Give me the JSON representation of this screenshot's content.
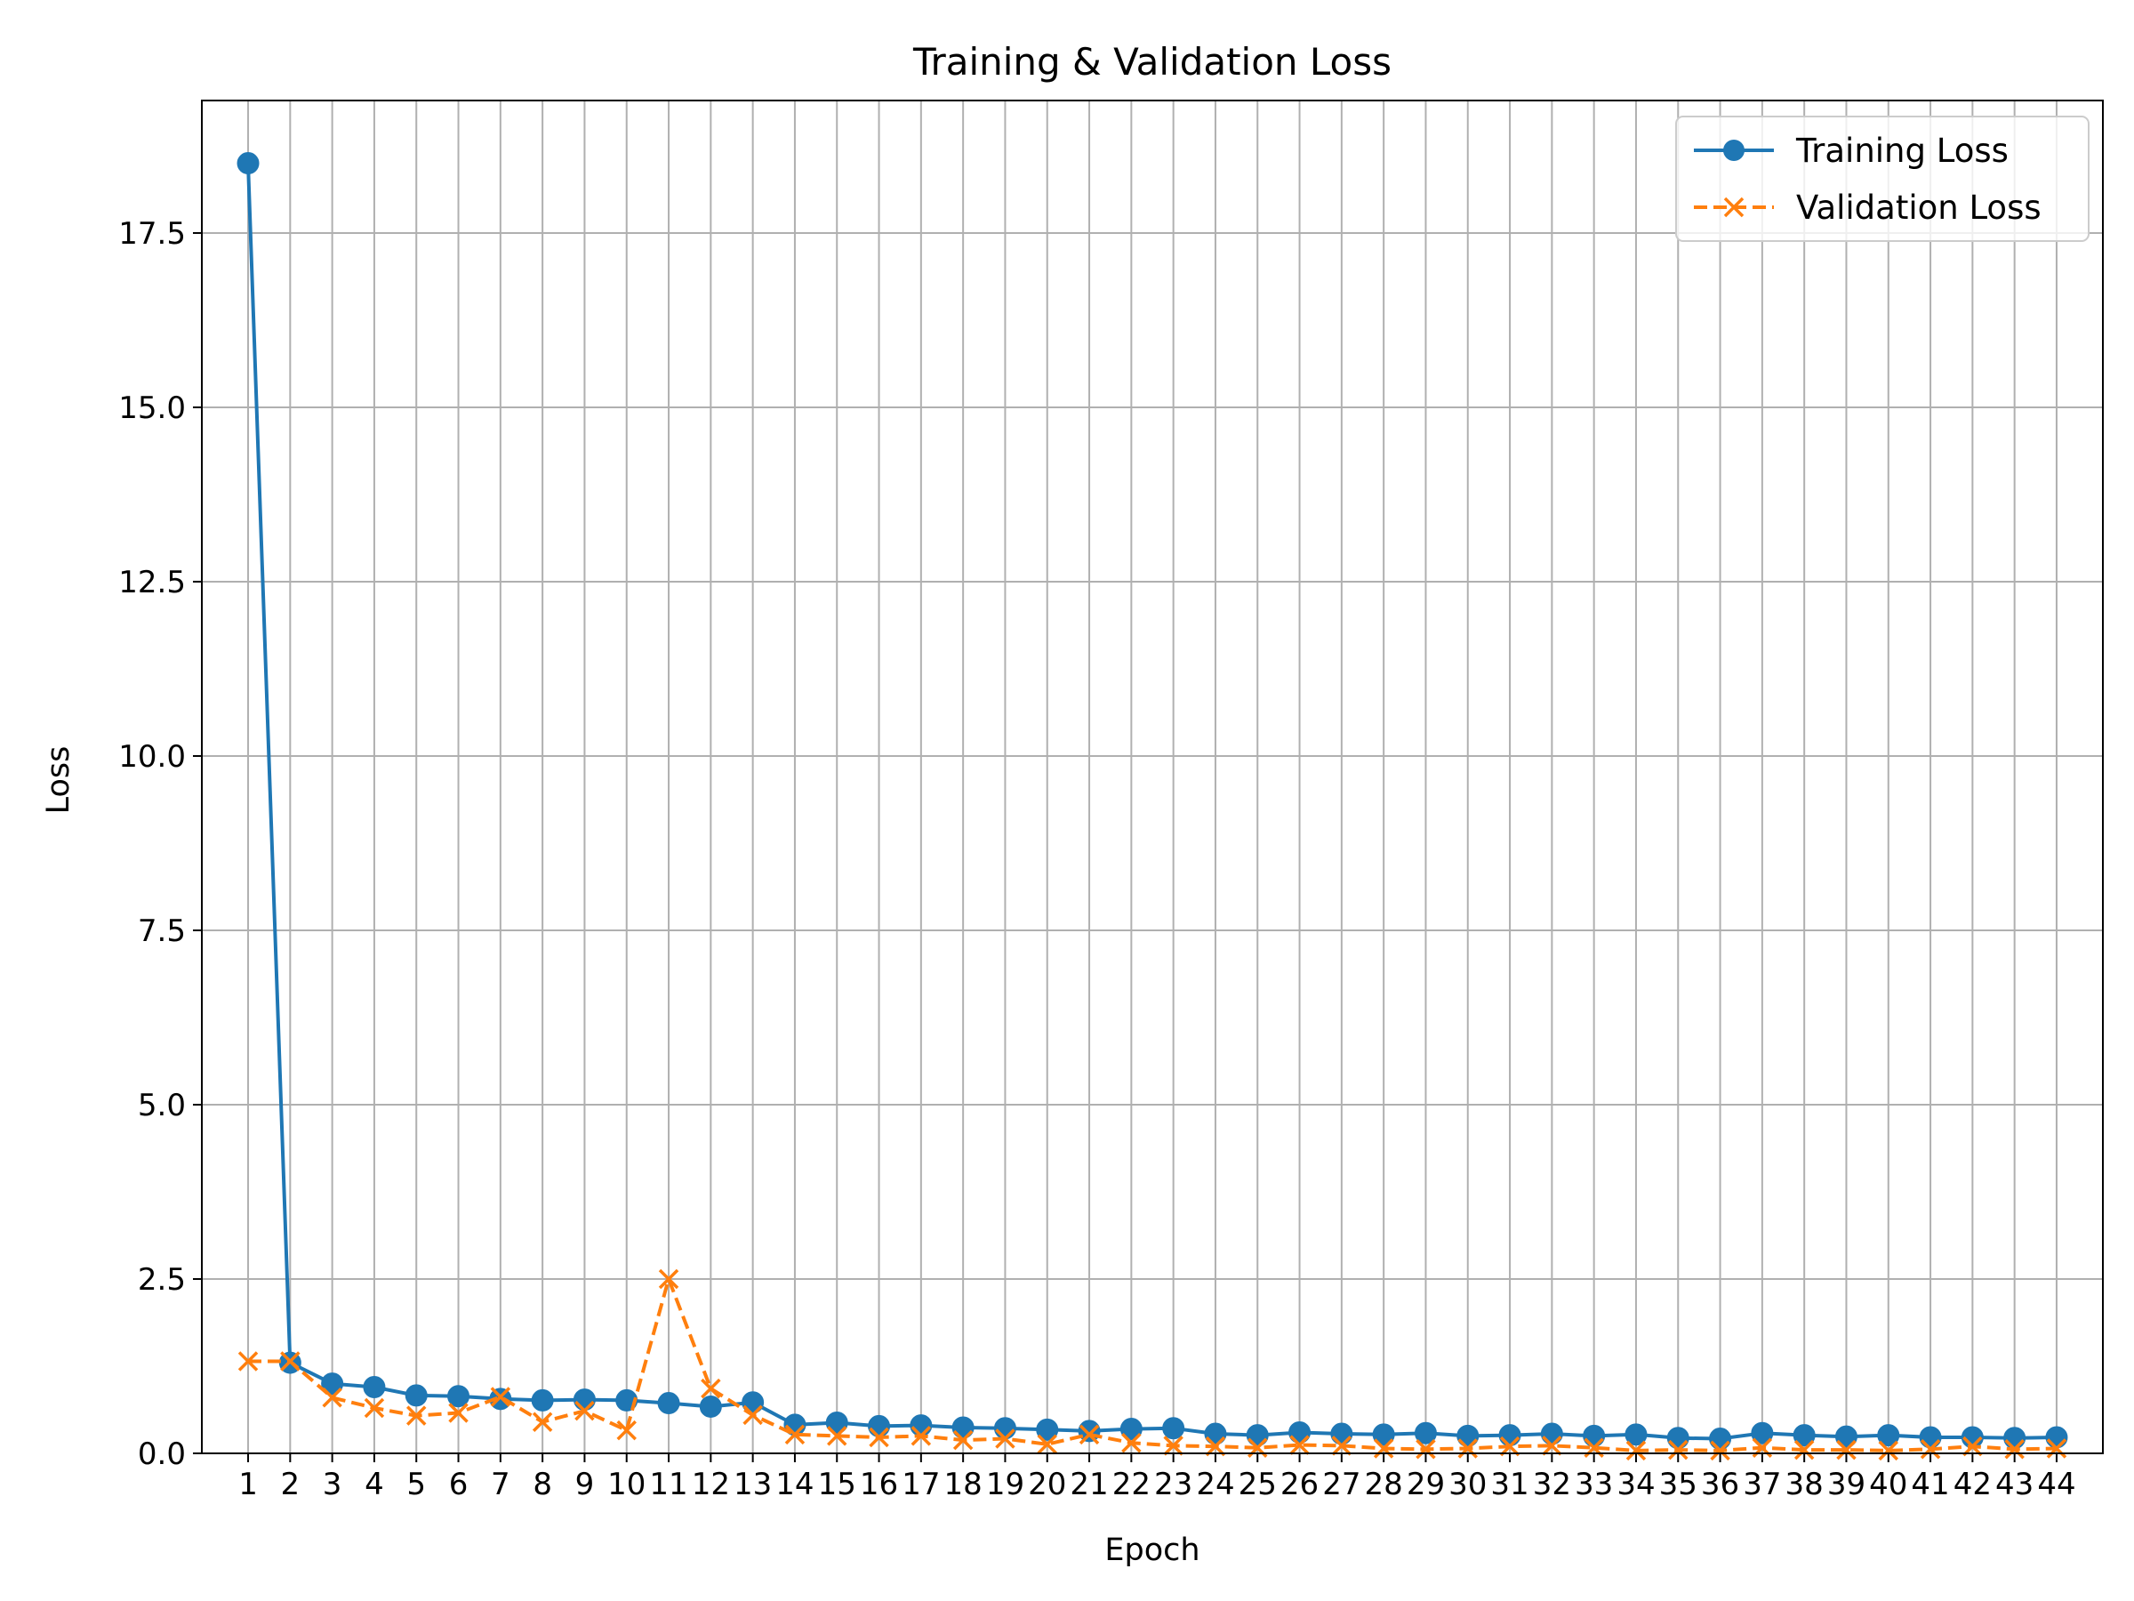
{
  "chart_data": {
    "type": "line",
    "title": "Training & Validation Loss",
    "xlabel": "Epoch",
    "ylabel": "Loss",
    "x": [
      1,
      2,
      3,
      4,
      5,
      6,
      7,
      8,
      9,
      10,
      11,
      12,
      13,
      14,
      15,
      16,
      17,
      18,
      19,
      20,
      21,
      22,
      23,
      24,
      25,
      26,
      27,
      28,
      29,
      30,
      31,
      32,
      33,
      34,
      35,
      36,
      37,
      38,
      39,
      40,
      41,
      42,
      43,
      44
    ],
    "xlim": [
      -0.1,
      45.1
    ],
    "ylim": [
      0,
      19.4
    ],
    "yticks": [
      0.0,
      2.5,
      5.0,
      7.5,
      10.0,
      12.5,
      15.0,
      17.5
    ],
    "ytick_labels": [
      "0.0",
      "2.5",
      "5.0",
      "7.5",
      "10.0",
      "12.5",
      "15.0",
      "17.5"
    ],
    "grid": true,
    "legend_position": "top-right",
    "series": [
      {
        "name": "Training Loss",
        "color": "#1f77b4",
        "line_style": "solid",
        "marker": "circle",
        "values": [
          18.5,
          1.3,
          1.0,
          0.95,
          0.83,
          0.82,
          0.78,
          0.76,
          0.77,
          0.76,
          0.72,
          0.67,
          0.73,
          0.41,
          0.44,
          0.39,
          0.4,
          0.37,
          0.36,
          0.34,
          0.32,
          0.35,
          0.36,
          0.28,
          0.26,
          0.3,
          0.28,
          0.27,
          0.29,
          0.25,
          0.26,
          0.28,
          0.25,
          0.27,
          0.22,
          0.21,
          0.29,
          0.26,
          0.24,
          0.26,
          0.23,
          0.23,
          0.22,
          0.23
        ]
      },
      {
        "name": "Validation Loss",
        "color": "#ff7f0e",
        "line_style": "dashed",
        "marker": "x",
        "values": [
          1.32,
          1.32,
          0.8,
          0.65,
          0.54,
          0.58,
          0.81,
          0.45,
          0.61,
          0.33,
          2.5,
          0.93,
          0.55,
          0.27,
          0.25,
          0.23,
          0.25,
          0.19,
          0.21,
          0.13,
          0.27,
          0.15,
          0.11,
          0.1,
          0.08,
          0.12,
          0.11,
          0.07,
          0.06,
          0.07,
          0.1,
          0.11,
          0.08,
          0.04,
          0.05,
          0.04,
          0.08,
          0.05,
          0.05,
          0.04,
          0.06,
          0.1,
          0.06,
          0.07
        ]
      }
    ]
  }
}
